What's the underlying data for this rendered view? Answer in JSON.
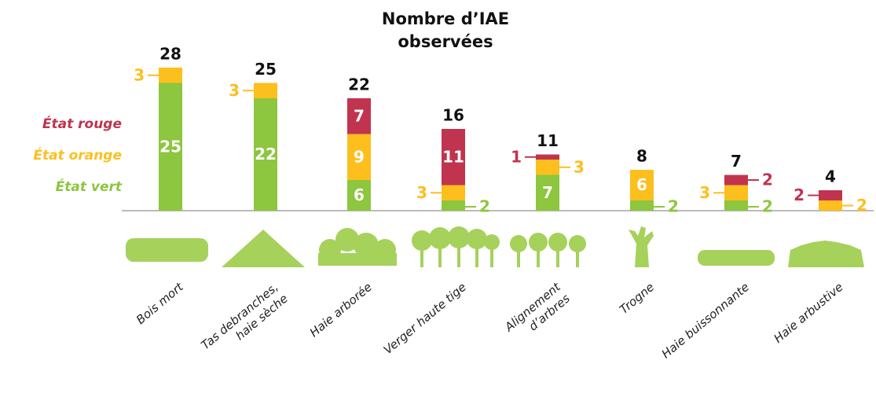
{
  "chart_data": {
    "type": "stacked_bar",
    "title": "Nombre d’IAE observées",
    "categories": [
      "Bois mort",
      "Tas debranches,\nhaie sèche",
      "Haie arborée",
      "Verger haute tige",
      "Alignement\nd’arbres",
      "Trogne",
      "Haie buissonnante",
      "Haie arbustive"
    ],
    "series": [
      {
        "name": "État vert",
        "color": "#8dc63f",
        "values": [
          25,
          22,
          6,
          2,
          7,
          2,
          2,
          0
        ]
      },
      {
        "name": "État orange",
        "color": "#fcbf1e",
        "values": [
          3,
          3,
          9,
          3,
          3,
          6,
          3,
          2
        ]
      },
      {
        "name": "État rouge",
        "color": "#c0344f",
        "values": [
          0,
          0,
          7,
          11,
          1,
          0,
          2,
          2
        ]
      }
    ],
    "totals": [
      28,
      25,
      22,
      16,
      11,
      8,
      7,
      4
    ]
  }
}
